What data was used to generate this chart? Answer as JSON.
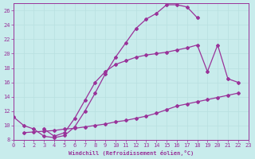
{
  "xlabel": "Windchill (Refroidissement éolien,°C)",
  "bg_color": "#c8ecec",
  "line_color": "#993399",
  "grid_color": "#b8e0e0",
  "xmin": 0,
  "xmax": 23,
  "ymin": 8,
  "ymax": 27,
  "yticks": [
    8,
    10,
    12,
    14,
    16,
    18,
    20,
    22,
    24,
    26
  ],
  "xticks": [
    0,
    1,
    2,
    3,
    4,
    5,
    6,
    7,
    8,
    9,
    10,
    11,
    12,
    13,
    14,
    15,
    16,
    17,
    18,
    19,
    20,
    21,
    22,
    23
  ],
  "series1_x": [
    0,
    1,
    2,
    3,
    4,
    5,
    6,
    7,
    8,
    9,
    10,
    11,
    12,
    13,
    14,
    15,
    16,
    17,
    18
  ],
  "series1_y": [
    11.2,
    10.0,
    9.5,
    8.5,
    8.3,
    8.6,
    9.8,
    12.0,
    14.5,
    17.2,
    19.5,
    21.5,
    23.5,
    24.8,
    25.6,
    26.8,
    26.8,
    26.5,
    25.0
  ],
  "series2_x": [
    3,
    4,
    5,
    6,
    7,
    8,
    9,
    10,
    11,
    12,
    13,
    14,
    15,
    16,
    17,
    18,
    19,
    20,
    21,
    22
  ],
  "series2_y": [
    9.5,
    8.5,
    9.0,
    11.0,
    13.5,
    16.0,
    17.5,
    18.5,
    19.0,
    19.5,
    19.8,
    20.0,
    20.2,
    20.5,
    20.8,
    21.2,
    17.5,
    21.2,
    16.5,
    16.0
  ],
  "series3_x": [
    1,
    2,
    3,
    4,
    5,
    6,
    7,
    8,
    9,
    10,
    11,
    12,
    13,
    14,
    15,
    16,
    17,
    18,
    19,
    20,
    21,
    22
  ],
  "series3_y": [
    9.0,
    9.1,
    9.2,
    9.3,
    9.5,
    9.6,
    9.8,
    10.0,
    10.2,
    10.5,
    10.7,
    11.0,
    11.3,
    11.7,
    12.2,
    12.7,
    13.0,
    13.3,
    13.6,
    13.9,
    14.2,
    14.5
  ]
}
